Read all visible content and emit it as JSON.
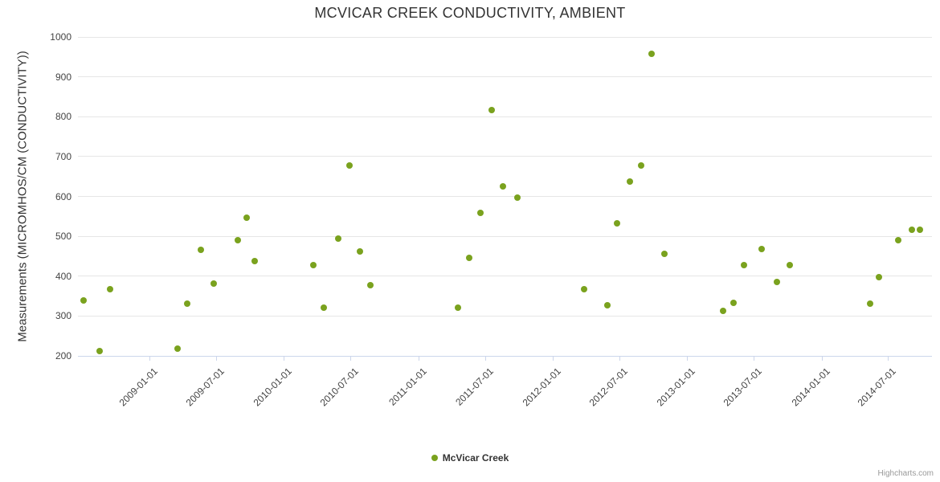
{
  "colors": {
    "point": "#7aa21e",
    "grid": "#e6e6e6",
    "axis_line": "#ccd6eb",
    "title_text": "#333333",
    "label_text": "#444444",
    "credits_text": "#999999"
  },
  "credits": {
    "text": "Highcharts.com"
  },
  "chart_data": {
    "type": "scatter",
    "title": "MCVICAR CREEK CONDUCTIVITY, AMBIENT",
    "xlabel": "",
    "ylabel": "Measurements (MICROMHOS/CM (CONDUCTIVITY))",
    "ylim": [
      200,
      1000
    ],
    "yticks": [
      200,
      300,
      400,
      500,
      600,
      700,
      800,
      900,
      1000
    ],
    "xlim": [
      "2008-06-20",
      "2014-10-28"
    ],
    "xticks": [
      "2009-01-01",
      "2009-07-01",
      "2010-01-01",
      "2010-07-01",
      "2011-01-01",
      "2011-07-01",
      "2012-01-01",
      "2012-07-01",
      "2013-01-01",
      "2013-07-01",
      "2014-01-01",
      "2014-07-01"
    ],
    "grid": "horizontal",
    "legend_position": "bottom-center",
    "series": [
      {
        "name": "McVicar Creek",
        "color": "#7aa21e",
        "points": [
          [
            "2008-07-05",
            340
          ],
          [
            "2008-08-18",
            213
          ],
          [
            "2008-09-15",
            367
          ],
          [
            "2009-03-18",
            219
          ],
          [
            "2009-04-12",
            330
          ],
          [
            "2009-05-20",
            466
          ],
          [
            "2009-06-25",
            382
          ],
          [
            "2009-08-28",
            491
          ],
          [
            "2009-09-22",
            546
          ],
          [
            "2009-10-14",
            437
          ],
          [
            "2010-03-22",
            428
          ],
          [
            "2010-04-20",
            321
          ],
          [
            "2010-05-28",
            495
          ],
          [
            "2010-06-28",
            678
          ],
          [
            "2010-07-26",
            461
          ],
          [
            "2010-08-24",
            377
          ],
          [
            "2011-04-18",
            320
          ],
          [
            "2011-05-20",
            446
          ],
          [
            "2011-06-18",
            558
          ],
          [
            "2011-07-20",
            817
          ],
          [
            "2011-08-18",
            626
          ],
          [
            "2011-09-28",
            596
          ],
          [
            "2012-03-26",
            367
          ],
          [
            "2012-05-28",
            327
          ],
          [
            "2012-06-24",
            533
          ],
          [
            "2012-07-30",
            638
          ],
          [
            "2012-08-28",
            678
          ],
          [
            "2012-09-26",
            958
          ],
          [
            "2012-10-30",
            456
          ],
          [
            "2013-04-08",
            313
          ],
          [
            "2013-05-06",
            334
          ],
          [
            "2013-06-05",
            427
          ],
          [
            "2013-07-22",
            468
          ],
          [
            "2013-09-02",
            385
          ],
          [
            "2013-10-07",
            427
          ],
          [
            "2014-05-12",
            330
          ],
          [
            "2014-06-05",
            397
          ],
          [
            "2014-07-28",
            491
          ],
          [
            "2014-09-03",
            516
          ],
          [
            "2014-09-26",
            516
          ]
        ]
      }
    ]
  }
}
